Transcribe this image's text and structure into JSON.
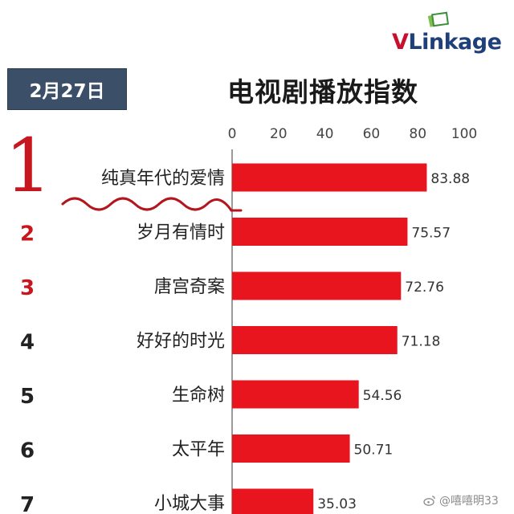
{
  "logo": {
    "text_v": "V",
    "text_rest": "Linkage",
    "color_v": "#c8102e",
    "color_rest": "#1f3f7a"
  },
  "date": "2月27日",
  "title": "电视剧播放指数",
  "watermark": "@嘻嘻明33",
  "colors": {
    "bar": "#e8141e",
    "rank_top": "#c8161e",
    "rank": "#222222",
    "badge": "#3b5068"
  },
  "chart_data": {
    "type": "bar",
    "orientation": "horizontal",
    "title": "电视剧播放指数",
    "xlim": [
      0,
      100
    ],
    "xticks": [
      "0",
      "20",
      "40",
      "60",
      "80",
      "100"
    ],
    "ranks": [
      "1",
      "2",
      "3",
      "4",
      "5",
      "6",
      "7"
    ],
    "categories": [
      "纯真年代的爱情",
      "岁月有情时",
      "唐宫奇案",
      "好好的时光",
      "生命树",
      "太平年",
      "小城大事"
    ],
    "values": [
      83.88,
      75.57,
      72.76,
      71.18,
      54.56,
      50.71,
      35.03
    ],
    "value_labels": [
      "83.88",
      "75.57",
      "72.76",
      "71.18",
      "54.56",
      "50.71",
      "35.03"
    ]
  }
}
